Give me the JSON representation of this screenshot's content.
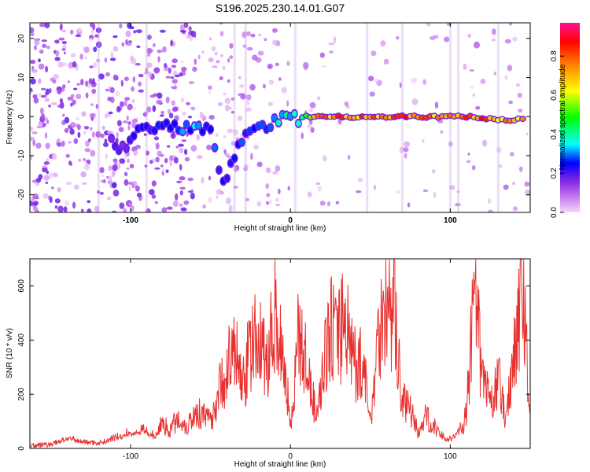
{
  "chart_data": [
    {
      "type": "heatmap",
      "title": "S196.2025.230.14.01.G07",
      "xlabel": "Height of straight line (km)",
      "ylabel": "Frequency (Hz)",
      "xlim": [
        -163,
        150
      ],
      "ylim": [
        -24.5,
        24
      ],
      "xticks": [
        -100,
        0,
        100
      ],
      "yticks": [
        -20,
        -10,
        0,
        10,
        20
      ],
      "colorbar": {
        "label": "Normalized spectral amplitude",
        "range": [
          0,
          0.97
        ],
        "ticks": [
          "0.0",
          "0.2",
          "0.4",
          "0.6",
          "0.8"
        ],
        "colors": [
          "#f6d8f8",
          "#8a2be2",
          "#0000ff",
          "#00ffff",
          "#00ff00",
          "#ffff00",
          "#ff8000",
          "#ff0000",
          "#ff1493"
        ]
      },
      "ridge": [
        {
          "x": -112,
          "y": -6,
          "amp": 0.22
        },
        {
          "x": -105,
          "y": -8,
          "amp": 0.2
        },
        {
          "x": -98,
          "y": -5,
          "amp": 0.24
        },
        {
          "x": -90,
          "y": -2,
          "amp": 0.26
        },
        {
          "x": -80,
          "y": -3,
          "amp": 0.3
        },
        {
          "x": -70,
          "y": -3,
          "amp": 0.34
        },
        {
          "x": -60,
          "y": -3,
          "amp": 0.34
        },
        {
          "x": -50,
          "y": -4,
          "amp": 0.3
        },
        {
          "x": -42,
          "y": -17,
          "amp": 0.28
        },
        {
          "x": -28,
          "y": -4,
          "amp": 0.3
        },
        {
          "x": -20,
          "y": -3,
          "amp": 0.32
        },
        {
          "x": -10,
          "y": -1,
          "amp": 0.4
        },
        {
          "x": 0,
          "y": -0.5,
          "amp": 0.42
        },
        {
          "x": 10,
          "y": 0,
          "amp": 0.55
        },
        {
          "x": 20,
          "y": 0,
          "amp": 0.85
        },
        {
          "x": 35,
          "y": 0,
          "amp": 0.88
        },
        {
          "x": 50,
          "y": 0,
          "amp": 0.85
        },
        {
          "x": 65,
          "y": 0,
          "amp": 0.9
        },
        {
          "x": 80,
          "y": 0,
          "amp": 0.85
        },
        {
          "x": 95,
          "y": 0,
          "amp": 0.82
        },
        {
          "x": 110,
          "y": 0,
          "amp": 0.9
        },
        {
          "x": 125,
          "y": -0.5,
          "amp": 0.86
        },
        {
          "x": 140,
          "y": -1,
          "amp": 0.8
        },
        {
          "x": 148,
          "y": 0,
          "amp": 0.7
        }
      ]
    },
    {
      "type": "line",
      "xlabel": "Height of straight line (km)",
      "ylabel": "SNR (10 * v/v)",
      "xlim": [
        -163,
        150
      ],
      "ylim": [
        0,
        700
      ],
      "xticks": [
        -100,
        0,
        100
      ],
      "yticks": [
        0,
        200,
        400,
        600
      ],
      "color": "#e8312f",
      "x": [
        -163,
        -150,
        -140,
        -130,
        -120,
        -110,
        -100,
        -90,
        -85,
        -80,
        -75,
        -70,
        -65,
        -60,
        -55,
        -50,
        -45,
        -40,
        -35,
        -30,
        -25,
        -20,
        -15,
        -10,
        -5,
        0,
        5,
        10,
        15,
        20,
        25,
        30,
        35,
        40,
        45,
        50,
        55,
        60,
        65,
        70,
        75,
        80,
        85,
        90,
        95,
        100,
        105,
        110,
        115,
        120,
        125,
        130,
        135,
        140,
        145,
        150
      ],
      "y": [
        10,
        15,
        35,
        25,
        20,
        35,
        55,
        60,
        40,
        90,
        70,
        110,
        80,
        130,
        120,
        100,
        210,
        280,
        350,
        230,
        360,
        420,
        300,
        480,
        380,
        80,
        400,
        310,
        150,
        250,
        460,
        380,
        480,
        300,
        320,
        90,
        440,
        520,
        480,
        170,
        130,
        60,
        120,
        80,
        40,
        30,
        60,
        120,
        560,
        260,
        160,
        240,
        110,
        380,
        580,
        140
      ]
    }
  ]
}
